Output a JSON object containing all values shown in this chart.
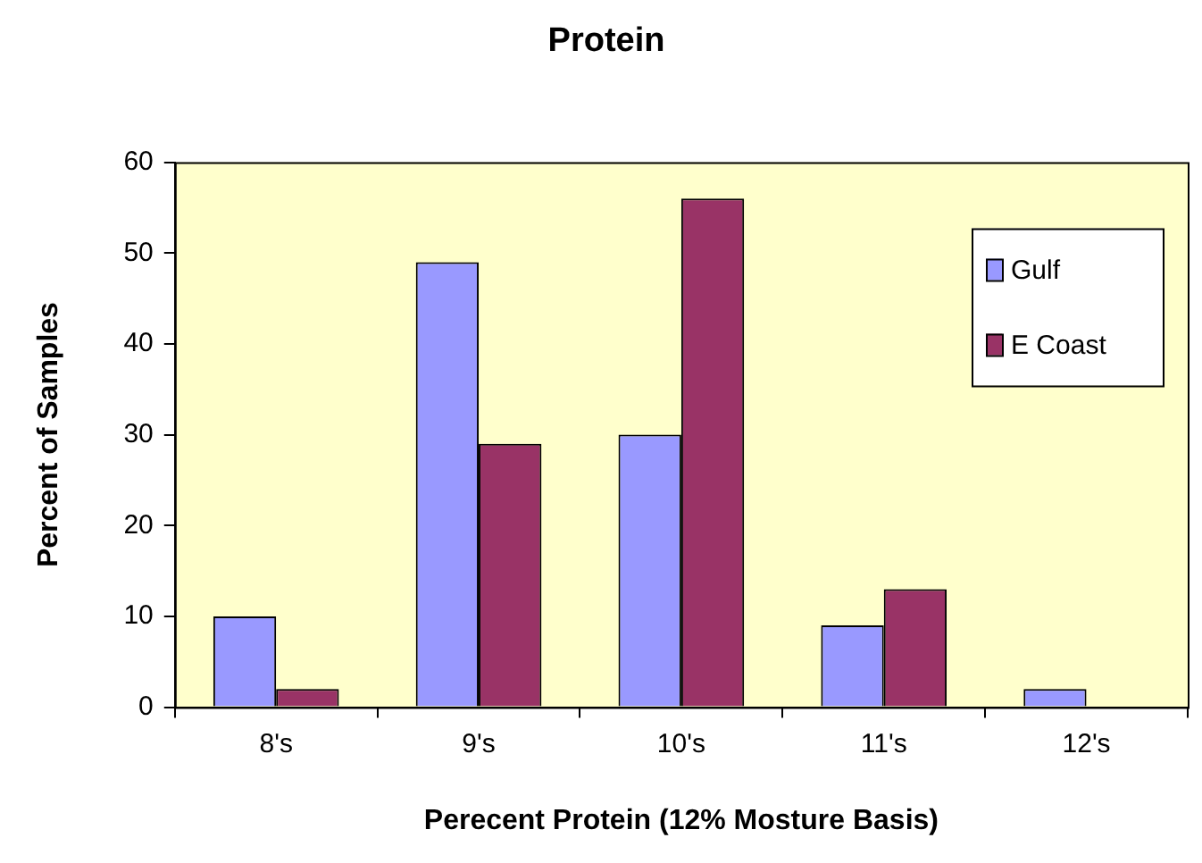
{
  "chart_data": {
    "type": "bar",
    "title": "Protein",
    "xlabel": "Perecent Protein (12% Mosture Basis)",
    "ylabel": "Percent of Samples",
    "categories": [
      "8's",
      "9's",
      "10's",
      "11's",
      "12's"
    ],
    "series": [
      {
        "name": "Gulf",
        "color": "#9999ff",
        "values": [
          10,
          49,
          30,
          9,
          2
        ]
      },
      {
        "name": "E Coast",
        "color": "#993366",
        "values": [
          2,
          29,
          56,
          13,
          null
        ]
      }
    ],
    "ylim": [
      0,
      60
    ],
    "yticks": [
      0,
      10,
      20,
      30,
      40,
      50,
      60
    ],
    "grid": false,
    "legend": "top right"
  }
}
